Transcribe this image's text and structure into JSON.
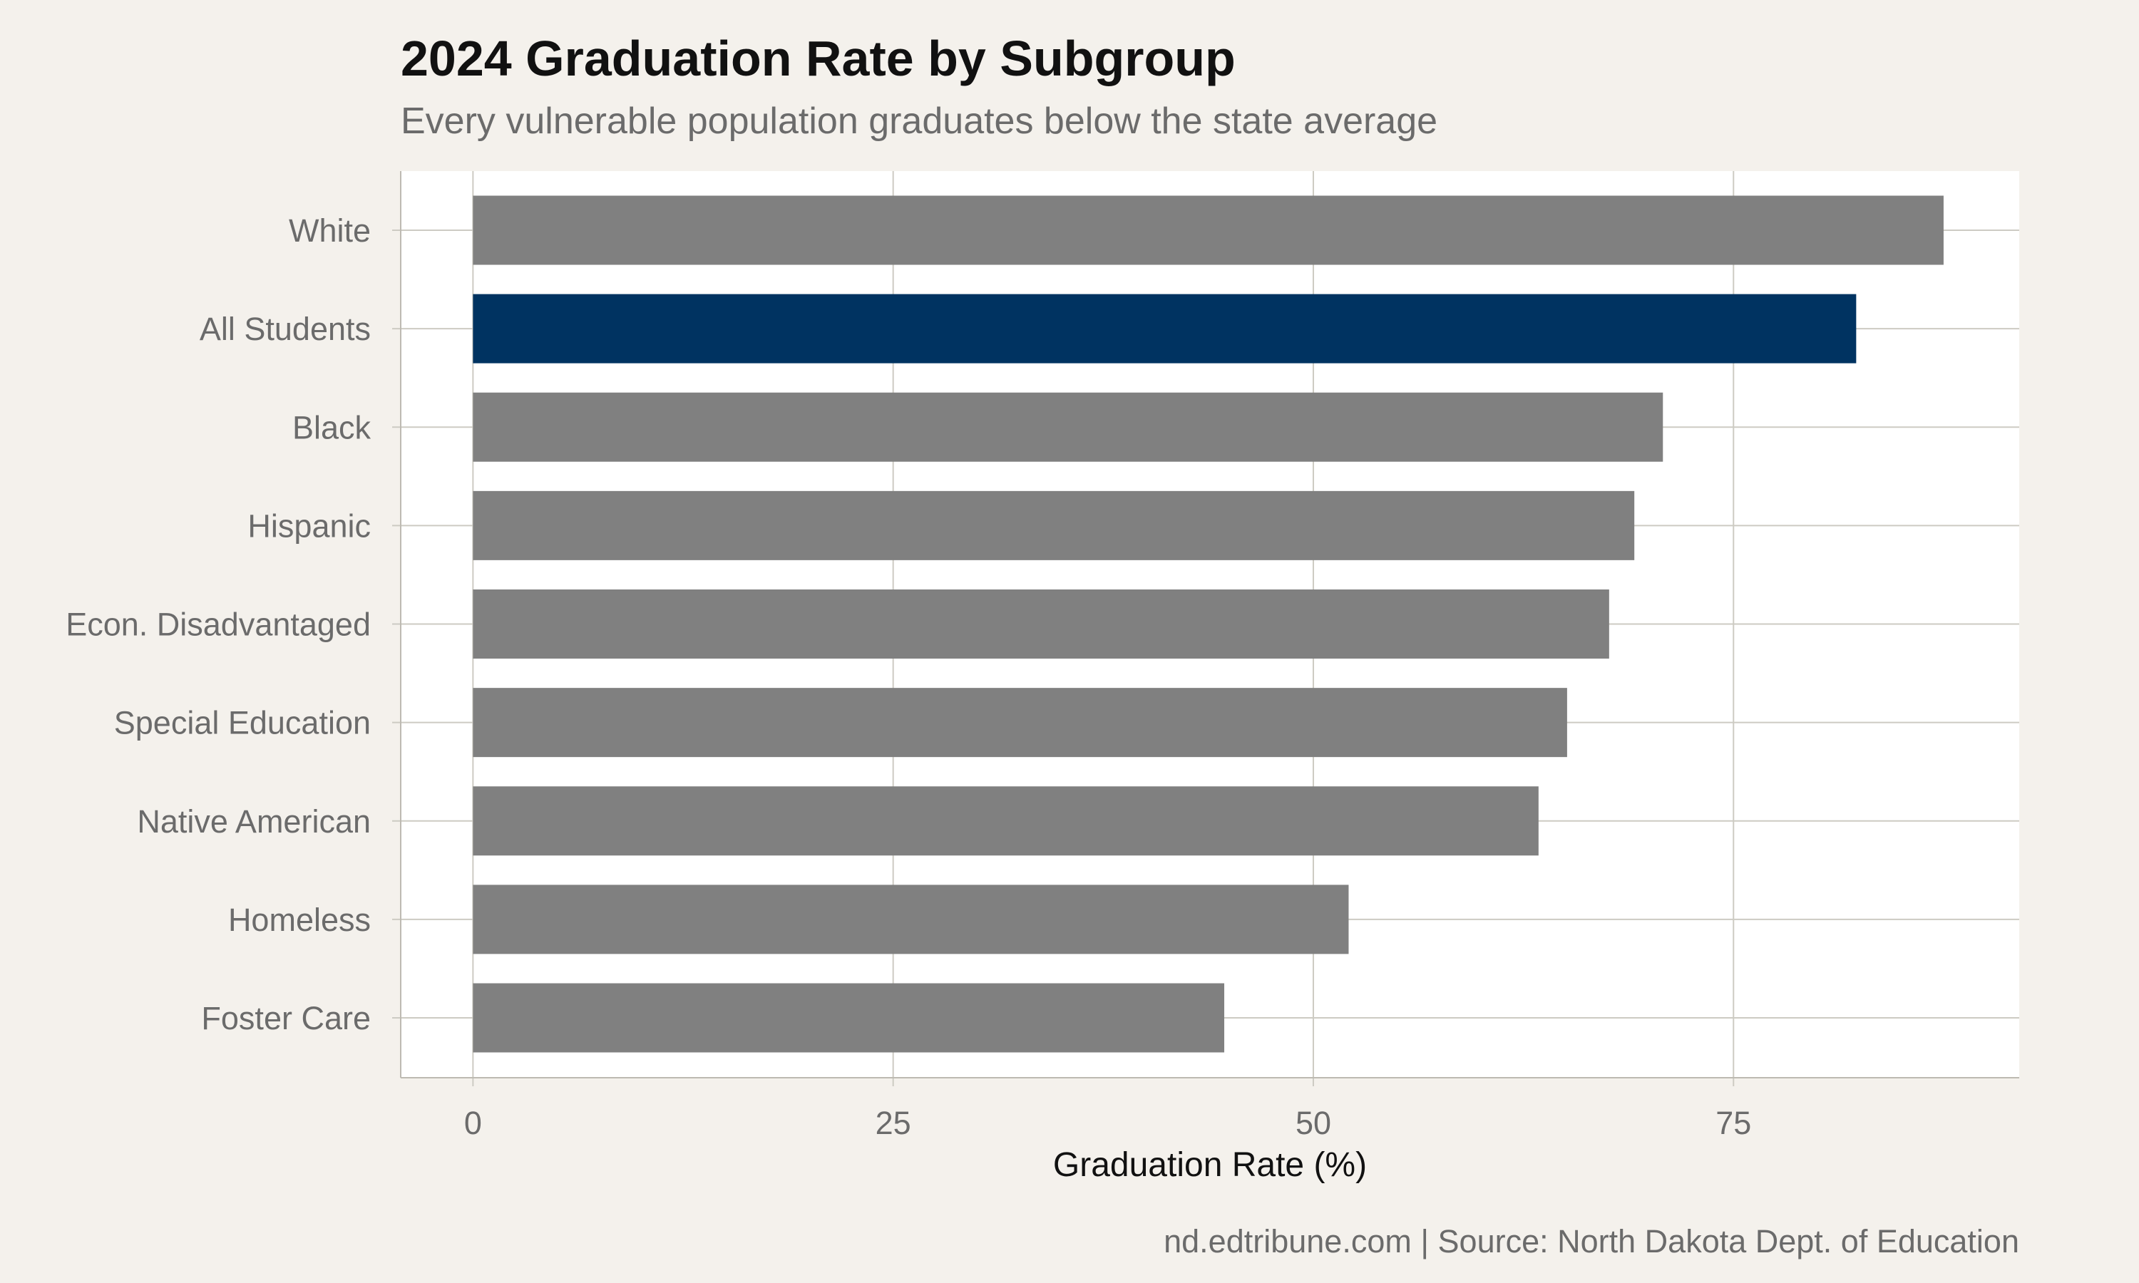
{
  "chart_data": {
    "type": "bar",
    "orientation": "horizontal",
    "title": "2024 Graduation Rate by Subgroup",
    "subtitle": "Every vulnerable population graduates below the state average",
    "xlabel": "Graduation Rate (%)",
    "ylabel": "",
    "caption": "nd.edtribune.com | Source: North Dakota Dept. of Education",
    "categories": [
      "White",
      "All Students",
      "Black",
      "Hispanic",
      "Econ. Disadvantaged",
      "Special Education",
      "Native American",
      "Homeless",
      "Foster Care"
    ],
    "values": [
      87.5,
      82.3,
      70.8,
      69.1,
      67.6,
      65.1,
      63.4,
      52.1,
      44.7
    ],
    "highlight": "All Students",
    "xlim": [
      -4.3,
      92
    ],
    "xticks": [
      0,
      25,
      50,
      75
    ],
    "grid": true,
    "colors": {
      "bar": "#808080",
      "highlight": "#003361",
      "panel": "#ffffff",
      "background": "#f4f1ec",
      "grid": "#cdcbc3",
      "axis_text": "#6b6b6b",
      "title": "#111111"
    }
  }
}
